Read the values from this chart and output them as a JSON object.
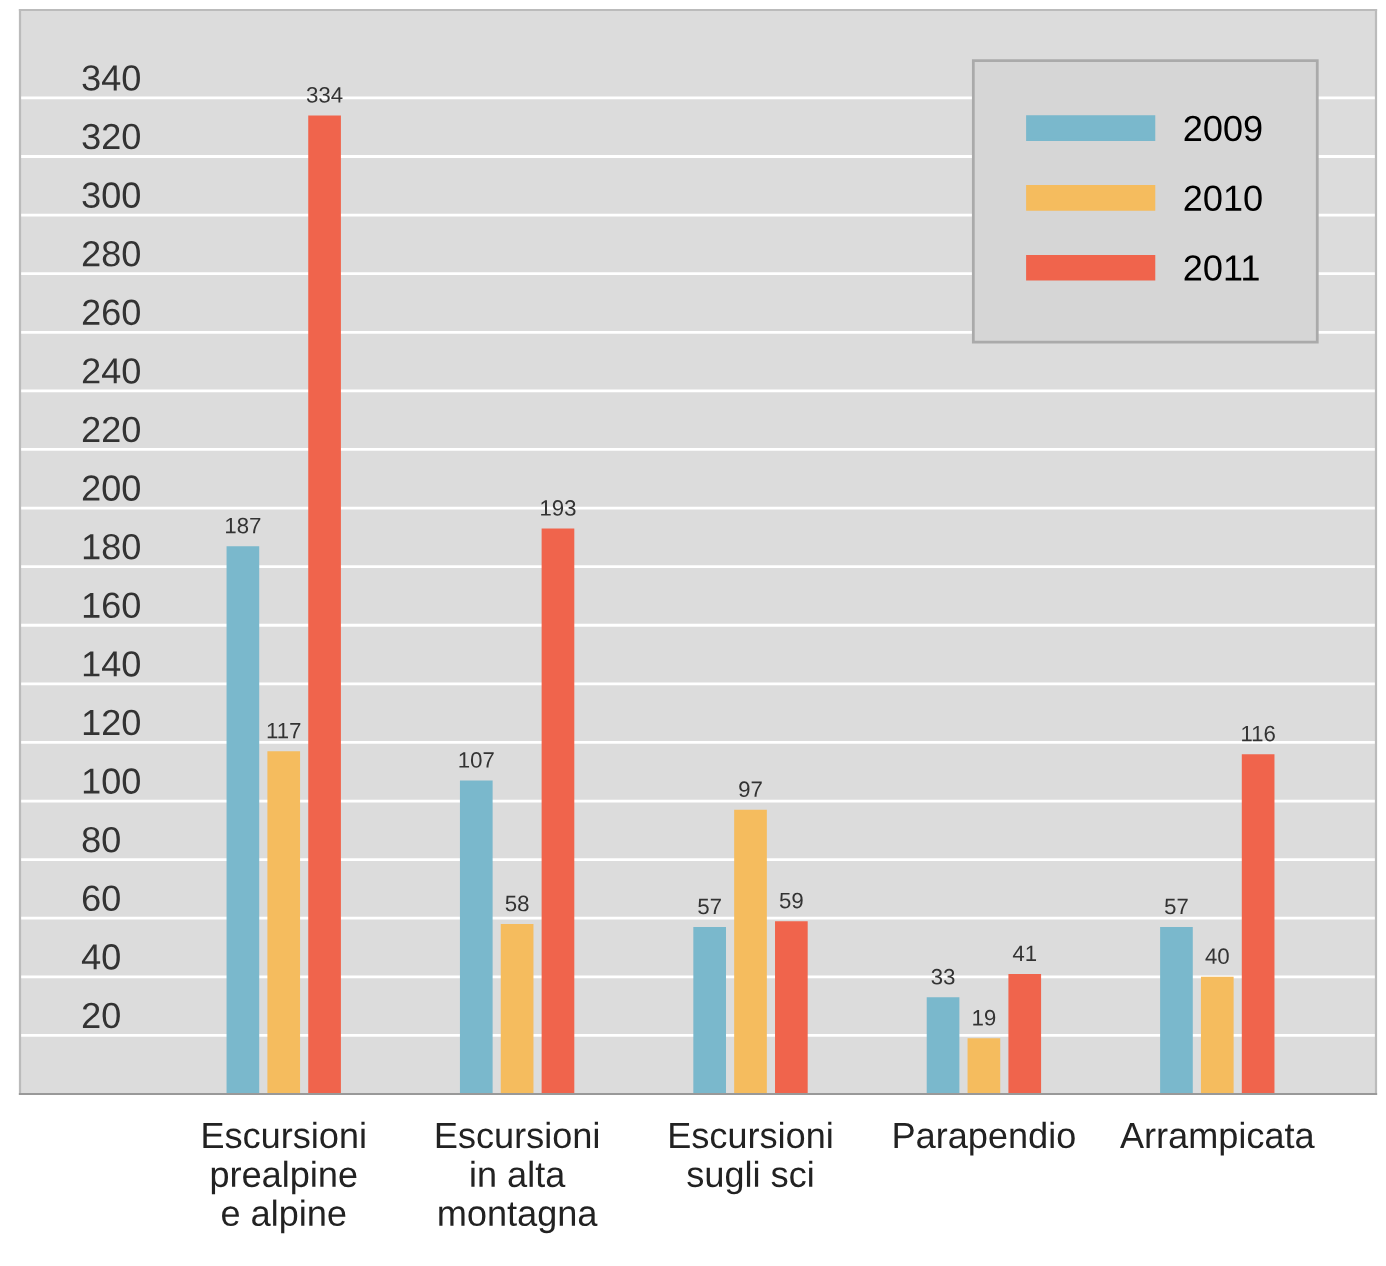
{
  "chart_data": {
    "type": "bar",
    "categories": [
      "Escursioni\nprealpine\ne alpine",
      "Escursioni\nin alta\nmontagna",
      "Escursioni\nsugli sci",
      "Parapendio",
      "Arrampicata"
    ],
    "series": [
      {
        "name": "2009",
        "color": "#7ab8cc",
        "values": [
          187,
          107,
          57,
          33,
          57
        ]
      },
      {
        "name": "2010",
        "color": "#f5bc5e",
        "values": [
          117,
          58,
          97,
          19,
          40
        ]
      },
      {
        "name": "2011",
        "color": "#f0644c",
        "values": [
          334,
          193,
          59,
          41,
          116
        ]
      }
    ],
    "ylim": [
      0,
      370
    ],
    "yticks": [
      20,
      40,
      60,
      80,
      100,
      120,
      140,
      160,
      180,
      200,
      220,
      240,
      260,
      280,
      300,
      320,
      340
    ],
    "grid": "y",
    "legend": "top right",
    "data_labels": true
  }
}
